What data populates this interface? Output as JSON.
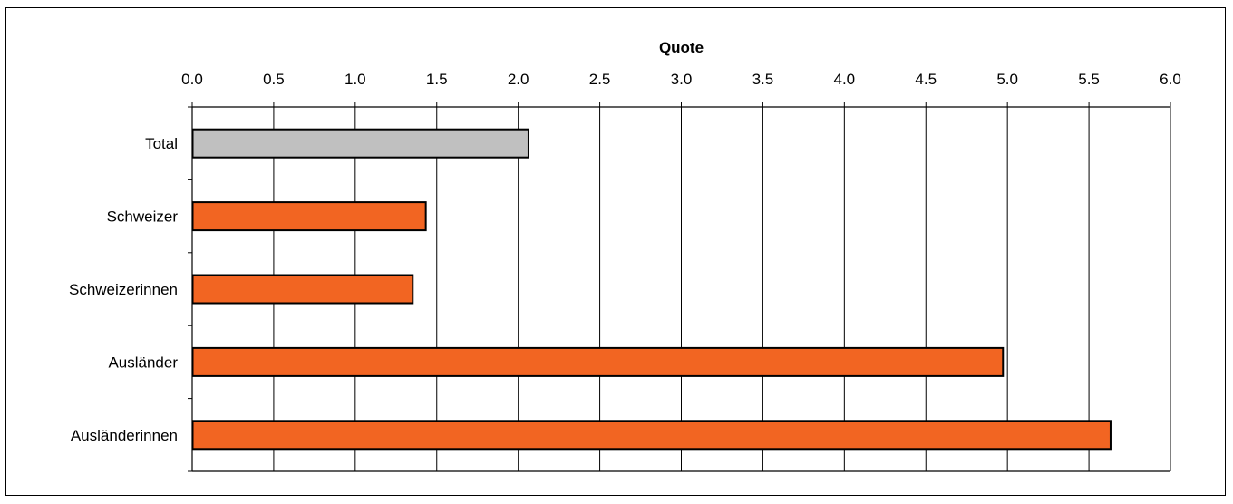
{
  "chart_data": {
    "type": "bar",
    "orientation": "horizontal",
    "xlabel": "Quote",
    "xlim": [
      0,
      6
    ],
    "x_ticks": [
      0.0,
      0.5,
      1.0,
      1.5,
      2.0,
      2.5,
      3.0,
      3.5,
      4.0,
      4.5,
      5.0,
      5.5,
      6.0
    ],
    "x_tick_labels": [
      "0.0",
      "0.5",
      "1.0",
      "1.5",
      "2.0",
      "2.5",
      "3.0",
      "3.5",
      "4.0",
      "4.5",
      "5.0",
      "5.5",
      "6.0"
    ],
    "x_axis_position": "top",
    "grid": "vertical",
    "categories": [
      "Total",
      "Schweizer",
      "Schweizerinnen",
      "Ausländer",
      "Ausländerinnen"
    ],
    "values": [
      2.06,
      1.43,
      1.35,
      4.97,
      5.63
    ],
    "colors": [
      "#c0c0c0",
      "#f26522",
      "#f26522",
      "#f26522",
      "#f26522"
    ]
  }
}
